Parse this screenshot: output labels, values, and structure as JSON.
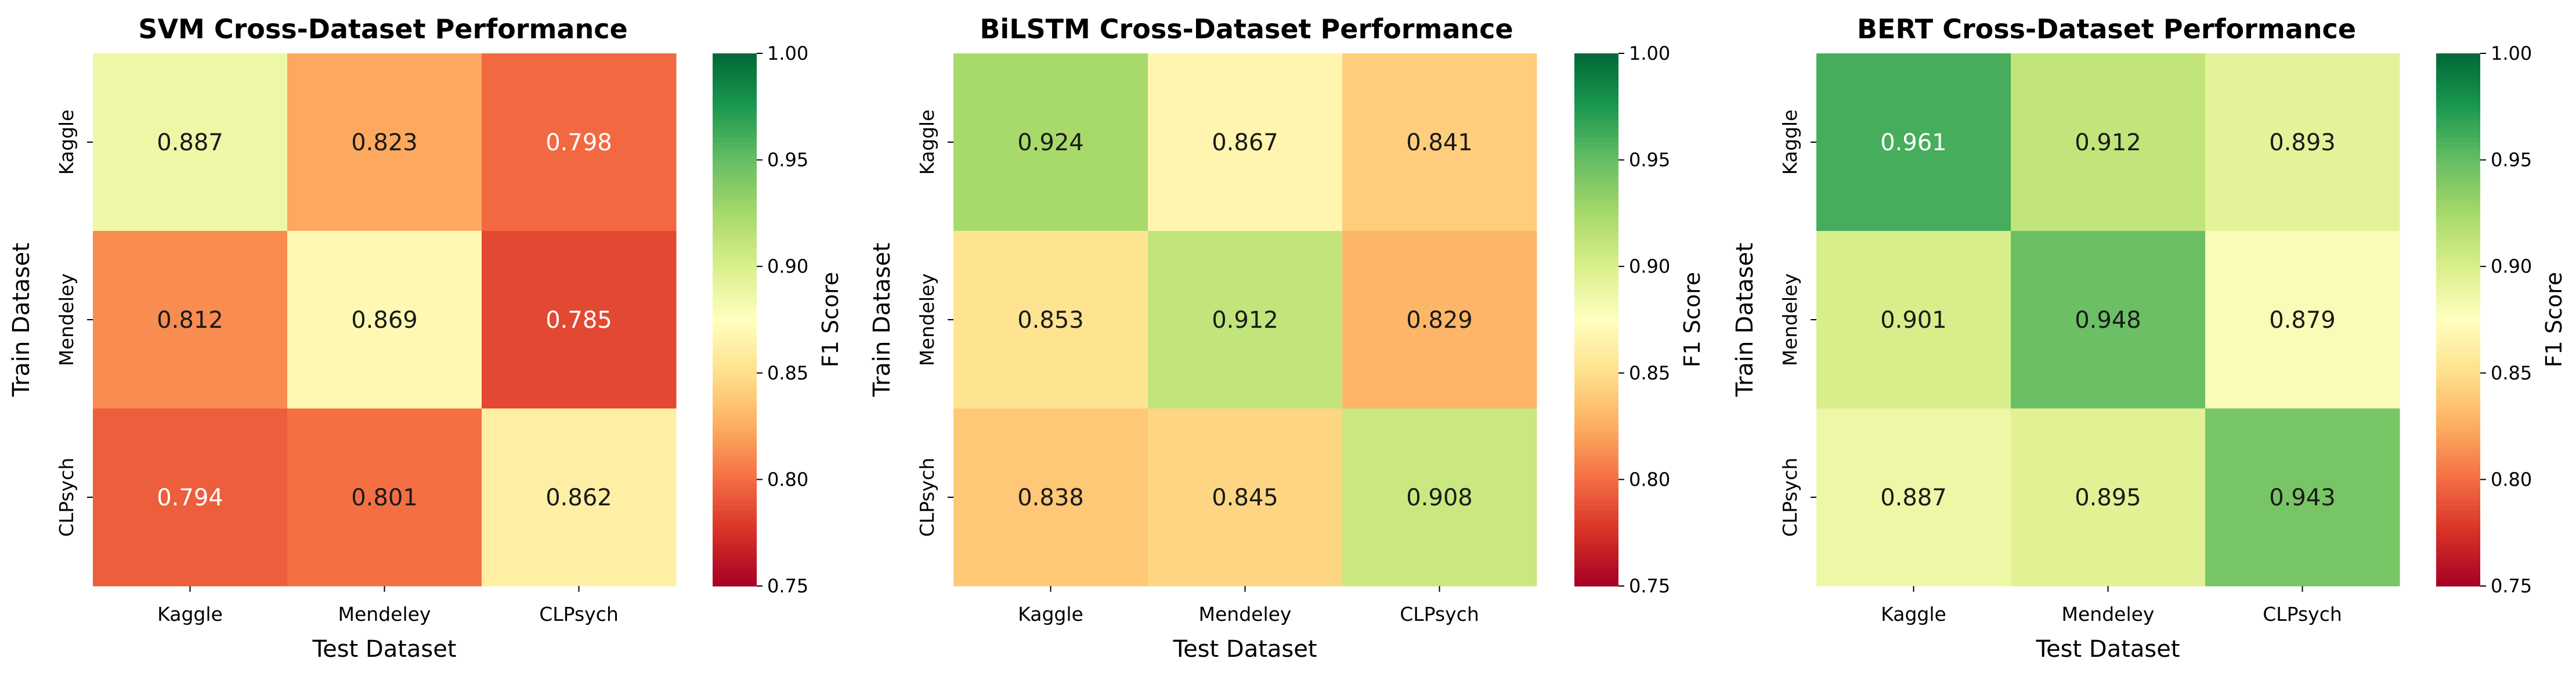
{
  "colorbar": {
    "label": "F1 Score",
    "range": [
      0.75,
      1.0
    ],
    "ticks": [
      "0.75",
      "0.80",
      "0.85",
      "0.90",
      "0.95",
      "1.00"
    ],
    "colormap": "RdYlGn"
  },
  "chart_data": [
    {
      "type": "heatmap",
      "title": "SVM Cross-Dataset Performance",
      "xlabel": "Test Dataset",
      "ylabel": "Train Dataset",
      "x_categories": [
        "Kaggle",
        "Mendeley",
        "CLPsych"
      ],
      "y_categories": [
        "Kaggle",
        "Mendeley",
        "CLPsych"
      ],
      "values": [
        [
          0.887,
          0.823,
          0.798
        ],
        [
          0.812,
          0.869,
          0.785
        ],
        [
          0.794,
          0.801,
          0.862
        ]
      ],
      "value_labels": [
        [
          "0.887",
          "0.823",
          "0.798"
        ],
        [
          "0.812",
          "0.869",
          "0.785"
        ],
        [
          "0.794",
          "0.801",
          "0.862"
        ]
      ],
      "vmin": 0.75,
      "vmax": 1.0,
      "colorbar_label": "F1 Score"
    },
    {
      "type": "heatmap",
      "title": "BiLSTM Cross-Dataset Performance",
      "xlabel": "Test Dataset",
      "ylabel": "Train Dataset",
      "x_categories": [
        "Kaggle",
        "Mendeley",
        "CLPsych"
      ],
      "y_categories": [
        "Kaggle",
        "Mendeley",
        "CLPsych"
      ],
      "values": [
        [
          0.924,
          0.867,
          0.841
        ],
        [
          0.853,
          0.912,
          0.829
        ],
        [
          0.838,
          0.845,
          0.908
        ]
      ],
      "value_labels": [
        [
          "0.924",
          "0.867",
          "0.841"
        ],
        [
          "0.853",
          "0.912",
          "0.829"
        ],
        [
          "0.838",
          "0.845",
          "0.908"
        ]
      ],
      "vmin": 0.75,
      "vmax": 1.0,
      "colorbar_label": "F1 Score"
    },
    {
      "type": "heatmap",
      "title": "BERT Cross-Dataset Performance",
      "xlabel": "Test Dataset",
      "ylabel": "Train Dataset",
      "x_categories": [
        "Kaggle",
        "Mendeley",
        "CLPsych"
      ],
      "y_categories": [
        "Kaggle",
        "Mendeley",
        "CLPsych"
      ],
      "values": [
        [
          0.961,
          0.912,
          0.893
        ],
        [
          0.901,
          0.948,
          0.879
        ],
        [
          0.887,
          0.895,
          0.943
        ]
      ],
      "value_labels": [
        [
          "0.961",
          "0.912",
          "0.893"
        ],
        [
          "0.901",
          "0.948",
          "0.879"
        ],
        [
          "0.887",
          "0.895",
          "0.943"
        ]
      ],
      "vmin": 0.75,
      "vmax": 1.0,
      "colorbar_label": "F1 Score"
    }
  ]
}
